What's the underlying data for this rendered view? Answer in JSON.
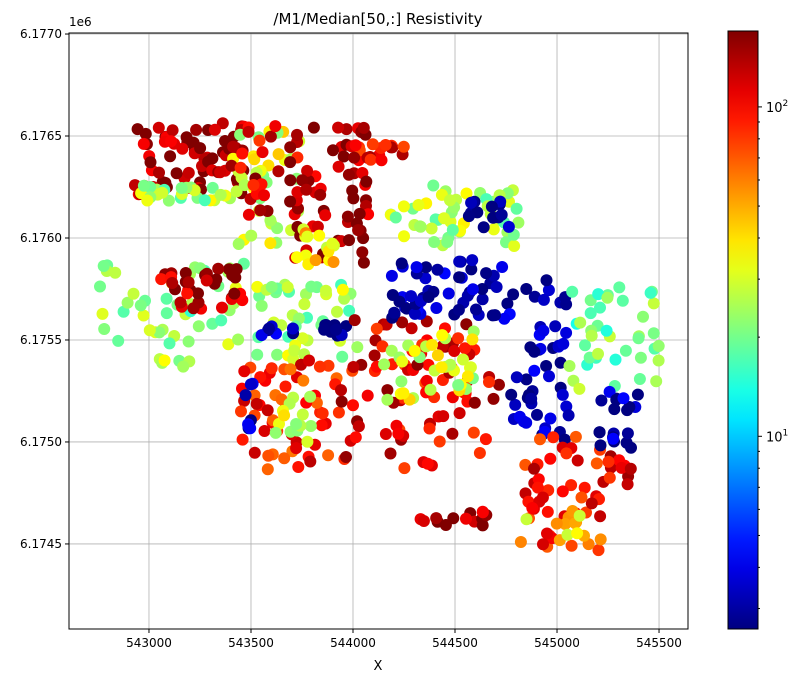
{
  "chart_data": {
    "type": "scatter",
    "title": "/M1/Median[50,:] Resistivity",
    "xlabel": "X",
    "ylabel": "",
    "y_offset_label": "1e6",
    "xlim": [
      542608,
      545642
    ],
    "ylim": [
      6174083,
      6177005
    ],
    "xticks": [
      543000,
      543500,
      544000,
      544500,
      545000,
      545500
    ],
    "xtick_labels": [
      "543000",
      "543500",
      "544000",
      "544500",
      "545000",
      "545500"
    ],
    "yticks": [
      6174500,
      6175000,
      6175500,
      6176000,
      6176500,
      6177000
    ],
    "ytick_labels": [
      "6.1745",
      "6.1750",
      "6.1755",
      "6.1760",
      "6.1765",
      "6.1770"
    ],
    "grid": true,
    "colormap": "jet",
    "color_scale": "log",
    "clim": [
      2.6,
      170
    ],
    "colorbar_ticks": [
      10,
      100
    ],
    "colorbar_tick_labels": [
      {
        "base": "10",
        "exp": "1"
      },
      {
        "base": "10",
        "exp": "2"
      }
    ],
    "clusters": [
      {
        "x": [
          542930,
          543495
        ],
        "y": [
          6176210,
          6176570
        ],
        "v": 150,
        "n": 70
      },
      {
        "x": [
          542960,
          543450
        ],
        "y": [
          6176180,
          6176260
        ],
        "v": 25,
        "n": 25
      },
      {
        "x": [
          543400,
          543740
        ],
        "y": [
          6175940,
          6176560
        ],
        "v": 30,
        "n": 35
      },
      {
        "x": [
          543400,
          543740
        ],
        "y": [
          6176100,
          6176560
        ],
        "v": 120,
        "n": 25
      },
      {
        "x": [
          543690,
          544080
        ],
        "y": [
          6175870,
          6176570
        ],
        "v": 140,
        "n": 60
      },
      {
        "x": [
          543700,
          544050
        ],
        "y": [
          6175870,
          6176050
        ],
        "v": 40,
        "n": 15
      },
      {
        "x": [
          543990,
          544280
        ],
        "y": [
          6176380,
          6176470
        ],
        "v": 110,
        "n": 18
      },
      {
        "x": [
          544180,
          544820
        ],
        "y": [
          6175960,
          6176280
        ],
        "v": 25,
        "n": 50
      },
      {
        "x": [
          544560,
          544770
        ],
        "y": [
          6176050,
          6176180
        ],
        "v": 3,
        "n": 14
      },
      {
        "x": [
          542760,
          543470
        ],
        "y": [
          6175470,
          6175880
        ],
        "v": 22,
        "n": 45
      },
      {
        "x": [
          543050,
          543470
        ],
        "y": [
          6175650,
          6175850
        ],
        "v": 140,
        "n": 35
      },
      {
        "x": [
          543500,
          544030
        ],
        "y": [
          6175400,
          6175780
        ],
        "v": 24,
        "n": 45
      },
      {
        "x": [
          543550,
          543980
        ],
        "y": [
          6175520,
          6175600
        ],
        "v": 3,
        "n": 16
      },
      {
        "x": [
          543450,
          543940
        ],
        "y": [
          6174860,
          6175400
        ],
        "v": 90,
        "n": 55
      },
      {
        "x": [
          543450,
          543530
        ],
        "y": [
          6175050,
          6175300
        ],
        "v": 3,
        "n": 8
      },
      {
        "x": [
          543600,
          543800
        ],
        "y": [
          6175000,
          6175250
        ],
        "v": 30,
        "n": 14
      },
      {
        "x": [
          543940,
          544720
        ],
        "y": [
          6174860,
          6175600
        ],
        "v": 110,
        "n": 90
      },
      {
        "x": [
          544150,
          544600
        ],
        "y": [
          6175200,
          6175550
        ],
        "v": 30,
        "n": 35
      },
      {
        "x": [
          544180,
          544770
        ],
        "y": [
          6175600,
          6175900
        ],
        "v": 3,
        "n": 55
      },
      {
        "x": [
          544770,
          545060
        ],
        "y": [
          6175000,
          6175800
        ],
        "v": 3,
        "n": 50
      },
      {
        "x": [
          545060,
          545500
        ],
        "y": [
          6175250,
          6175800
        ],
        "v": 20,
        "n": 40
      },
      {
        "x": [
          545200,
          545400
        ],
        "y": [
          6175150,
          6175250
        ],
        "v": 3,
        "n": 10
      },
      {
        "x": [
          544800,
          545230
        ],
        "y": [
          6174470,
          6175030
        ],
        "v": 100,
        "n": 45
      },
      {
        "x": [
          544800,
          545230
        ],
        "y": [
          6174470,
          6174700
        ],
        "v": 40,
        "n": 15
      },
      {
        "x": [
          545200,
          545380
        ],
        "y": [
          6174960,
          6175060
        ],
        "v": 3,
        "n": 10
      },
      {
        "x": [
          545250,
          545380
        ],
        "y": [
          6174780,
          6174960
        ],
        "v": 120,
        "n": 10
      },
      {
        "x": [
          544300,
          544700
        ],
        "y": [
          6174580,
          6174660
        ],
        "v": 150,
        "n": 14
      },
      {
        "x": [
          543050,
          543200
        ],
        "y": [
          6175350,
          6175420
        ],
        "v": 25,
        "n": 6
      }
    ]
  }
}
